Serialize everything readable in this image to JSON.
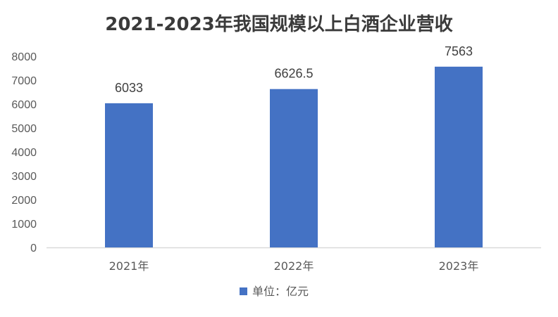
{
  "chart_data": {
    "type": "bar",
    "title": "2021-2023年我国规模以上白酒企业营收",
    "categories": [
      "2021年",
      "2022年",
      "2023年"
    ],
    "series": [
      {
        "name": "单位：亿元",
        "values": [
          6033,
          6626.5,
          7563
        ]
      }
    ],
    "data_labels": [
      "6033",
      "6626.5",
      "7563"
    ],
    "yticks": [
      "0",
      "1000",
      "2000",
      "3000",
      "4000",
      "5000",
      "6000",
      "7000",
      "8000"
    ],
    "ylim": [
      0,
      8000
    ],
    "grid": false,
    "legend_position": "bottom",
    "bar_color": "#4472C4",
    "axis_color": "#D9D9D9"
  }
}
